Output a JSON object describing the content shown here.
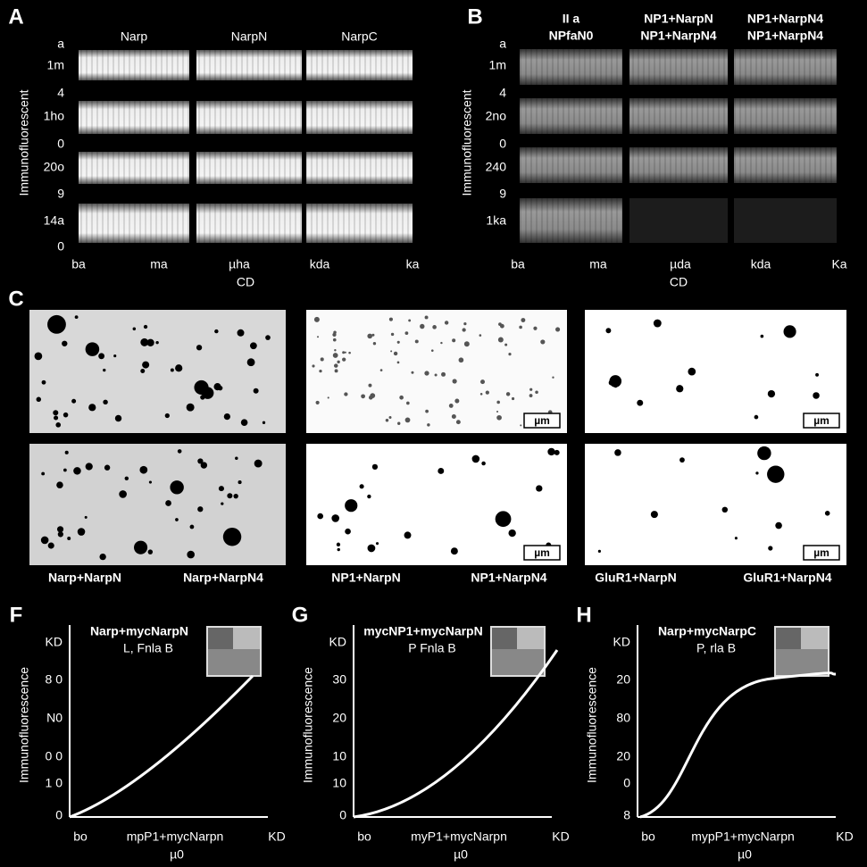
{
  "panel_a": {
    "label": "A",
    "columns": [
      "Narp",
      "NarpN",
      "NarpC"
    ],
    "y_title": "Immunofluorescent",
    "y_labels": [
      "a",
      "1m",
      "4",
      "1ho",
      "0",
      "20o",
      "9",
      "14a",
      "0"
    ],
    "x_labels": [
      "ba",
      "ma",
      "µha",
      "kda",
      "ka"
    ],
    "x_title": "CD"
  },
  "panel_b": {
    "label": "B",
    "columns": [
      [
        "II a",
        "NPfaN0"
      ],
      [
        "NP1+NarpN",
        "NP1+NarpN4"
      ],
      [
        "NP1+NarpN4",
        "NP1+NarpN4"
      ]
    ],
    "y_title": "Immunofluorescent",
    "y_labels": [
      "a",
      "1m",
      "4",
      "2no",
      "0",
      "240",
      "9",
      "1ka"
    ],
    "x_labels": [
      "ba",
      "ma",
      "µda",
      "kda",
      "Ka"
    ],
    "x_title": "CD"
  },
  "panel_c": {
    "label": "C",
    "scale_bars": [
      "µm",
      "µm",
      "µm",
      "µm"
    ],
    "captions": [
      "Narp+NarpN",
      "Narp+NarpN4",
      "NP1+NarpN",
      "NP1+NarpN4",
      "GluR1+NarpN",
      "GluR1+NarpN4"
    ]
  },
  "plots": [
    {
      "label": "F",
      "title": "Narp+mycNarpN",
      "subtitle": "L,      Fnla  B",
      "y_title": "Immunofluorescence",
      "y_labels": [
        "KD",
        "8 0",
        "N0",
        "0 0",
        "1 0",
        "0"
      ],
      "x_labels": [
        "bo",
        "mpP1+mycNarpn",
        "KD"
      ],
      "x_title": "µ0"
    },
    {
      "label": "G",
      "title": "mycNP1+mycNarpN",
      "subtitle": "P      Fnla  B",
      "y_title": "Immunofluorescence",
      "y_labels": [
        "KD",
        "30",
        "20",
        "10",
        "10",
        "0"
      ],
      "x_labels": [
        "bo",
        "myP1+mycNarpn",
        "KD"
      ],
      "x_title": "µ0"
    },
    {
      "label": "H",
      "title": "Narp+mycNarpC",
      "subtitle": "P,      rla  B",
      "y_title": "Immunofluorescence",
      "y_labels": [
        "KD",
        "20",
        "80",
        "20",
        "0",
        "8"
      ],
      "x_labels": [
        "bo",
        "mypP1+mycNarpn",
        "KD"
      ],
      "x_title": "µ0"
    }
  ]
}
